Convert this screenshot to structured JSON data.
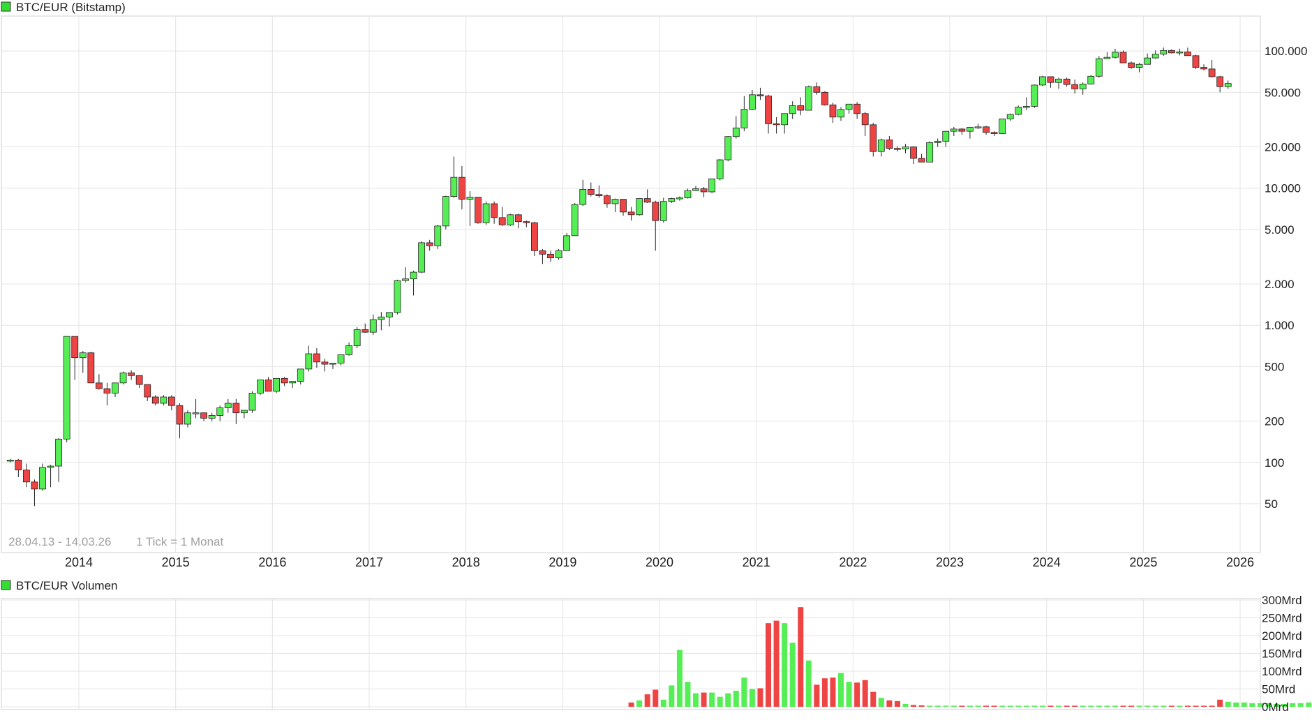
{
  "chart_data": [
    {
      "type": "candlestick",
      "title": "BTC/EUR (Bitstamp)",
      "legend_color": "#33dd33",
      "up_color": "#55ee55",
      "down_color": "#ee4444",
      "scale": "log",
      "ylim": [
        22,
        180000
      ],
      "grid": true,
      "y_ticks": [
        50,
        100,
        200,
        500,
        1000,
        2000,
        5000,
        10000,
        20000,
        50000,
        100000
      ],
      "y_tick_labels": [
        "50",
        "100",
        "200",
        "500",
        "1.000",
        "2.000",
        "5.000",
        "10.000",
        "20.000",
        "50.000",
        "100.000"
      ],
      "x_tick_labels": [
        "2014",
        "2015",
        "2016",
        "2017",
        "2018",
        "2019",
        "2020",
        "2021",
        "2022",
        "2023",
        "2024",
        "2025",
        "2026"
      ],
      "date_range": "28.04.13 - 14.03.26",
      "tick_note": "1 Tick = 1 Monat",
      "candles_ohlc": [
        [
          103,
          106,
          100,
          104
        ],
        [
          104,
          106,
          78,
          88
        ],
        [
          88,
          98,
          66,
          72
        ],
        [
          72,
          75,
          48,
          64
        ],
        [
          64,
          98,
          62,
          92
        ],
        [
          92,
          96,
          66,
          94
        ],
        [
          94,
          150,
          72,
          148
        ],
        [
          148,
          830,
          140,
          830
        ],
        [
          830,
          830,
          400,
          580
        ],
        [
          580,
          650,
          450,
          630
        ],
        [
          630,
          640,
          380,
          380
        ],
        [
          380,
          440,
          340,
          345
        ],
        [
          345,
          380,
          260,
          320
        ],
        [
          320,
          380,
          300,
          380
        ],
        [
          380,
          460,
          370,
          450
        ],
        [
          450,
          470,
          400,
          430
        ],
        [
          430,
          430,
          350,
          370
        ],
        [
          370,
          370,
          280,
          300
        ],
        [
          300,
          310,
          260,
          270
        ],
        [
          270,
          310,
          260,
          300
        ],
        [
          300,
          310,
          240,
          260
        ],
        [
          260,
          270,
          150,
          190
        ],
        [
          190,
          240,
          180,
          230
        ],
        [
          230,
          290,
          210,
          230
        ],
        [
          230,
          230,
          200,
          210
        ],
        [
          210,
          230,
          200,
          220
        ],
        [
          220,
          260,
          200,
          250
        ],
        [
          250,
          290,
          230,
          270
        ],
        [
          270,
          290,
          190,
          230
        ],
        [
          230,
          240,
          210,
          240
        ],
        [
          240,
          330,
          230,
          320
        ],
        [
          320,
          400,
          310,
          400
        ],
        [
          400,
          420,
          330,
          330
        ],
        [
          330,
          410,
          320,
          410
        ],
        [
          410,
          420,
          360,
          380
        ],
        [
          380,
          390,
          350,
          390
        ],
        [
          390,
          480,
          370,
          480
        ],
        [
          480,
          710,
          460,
          620
        ],
        [
          620,
          680,
          490,
          540
        ],
        [
          540,
          570,
          460,
          520
        ],
        [
          520,
          530,
          480,
          530
        ],
        [
          530,
          610,
          510,
          610
        ],
        [
          610,
          750,
          600,
          710
        ],
        [
          710,
          970,
          680,
          930
        ],
        [
          930,
          1030,
          880,
          890
        ],
        [
          890,
          1200,
          850,
          1100
        ],
        [
          1100,
          1250,
          920,
          1150
        ],
        [
          1150,
          1250,
          980,
          1240
        ],
        [
          1240,
          2150,
          1200,
          2120
        ],
        [
          2120,
          2650,
          2050,
          2180
        ],
        [
          2180,
          2500,
          1650,
          2440
        ],
        [
          2440,
          4100,
          2400,
          4000
        ],
        [
          4000,
          4200,
          3500,
          3800
        ],
        [
          3800,
          5400,
          3600,
          5300
        ],
        [
          5300,
          8800,
          5000,
          8700
        ],
        [
          8700,
          17000,
          8500,
          12000
        ],
        [
          12000,
          14500,
          7000,
          8300
        ],
        [
          8300,
          9500,
          5300,
          8600
        ],
        [
          8600,
          8600,
          5500,
          5600
        ],
        [
          5600,
          8000,
          5400,
          7700
        ],
        [
          7700,
          8000,
          5500,
          6100
        ],
        [
          6100,
          7300,
          5300,
          5400
        ],
        [
          5400,
          6500,
          5300,
          6400
        ],
        [
          6400,
          6500,
          5100,
          5700
        ],
        [
          5700,
          5800,
          5200,
          5600
        ],
        [
          5600,
          5700,
          3200,
          3500
        ],
        [
          3500,
          3600,
          2800,
          3300
        ],
        [
          3300,
          3500,
          2900,
          3100
        ],
        [
          3100,
          3600,
          3000,
          3500
        ],
        [
          3500,
          4700,
          3500,
          4500
        ],
        [
          4500,
          7800,
          4500,
          7600
        ],
        [
          7600,
          11500,
          7400,
          9800
        ],
        [
          9800,
          11000,
          8700,
          9000
        ],
        [
          9000,
          10500,
          8500,
          8800
        ],
        [
          8800,
          9000,
          7200,
          7700
        ],
        [
          7700,
          8400,
          6700,
          8300
        ],
        [
          8300,
          8300,
          6300,
          6700
        ],
        [
          6700,
          7300,
          5800,
          6400
        ],
        [
          6400,
          8400,
          6300,
          8400
        ],
        [
          8400,
          9800,
          7800,
          7900
        ],
        [
          7900,
          8100,
          3500,
          5800
        ],
        [
          5800,
          8500,
          5600,
          8000
        ],
        [
          8000,
          8500,
          7800,
          8400
        ],
        [
          8400,
          8700,
          8100,
          8500
        ],
        [
          8500,
          9900,
          8400,
          9600
        ],
        [
          9600,
          10400,
          9500,
          9900
        ],
        [
          9900,
          10200,
          8600,
          9400
        ],
        [
          9400,
          11600,
          9200,
          11700
        ],
        [
          11700,
          16300,
          11400,
          16100
        ],
        [
          16100,
          24000,
          15700,
          23800
        ],
        [
          23800,
          33500,
          23000,
          27500
        ],
        [
          27500,
          47000,
          26000,
          37600
        ],
        [
          37600,
          52000,
          37000,
          48000
        ],
        [
          48000,
          54000,
          44000,
          47000
        ],
        [
          47000,
          48000,
          25000,
          29500
        ],
        [
          29500,
          33000,
          25000,
          29000
        ],
        [
          29000,
          35000,
          25000,
          35000
        ],
        [
          35000,
          43000,
          32000,
          40000
        ],
        [
          40000,
          46000,
          34000,
          37000
        ],
        [
          37000,
          56000,
          37000,
          55000
        ],
        [
          55000,
          59000,
          48000,
          50000
        ],
        [
          50000,
          51000,
          40000,
          40500
        ],
        [
          40500,
          42000,
          30000,
          33000
        ],
        [
          33000,
          39000,
          31000,
          37500
        ],
        [
          37500,
          41000,
          35000,
          41000
        ],
        [
          41000,
          42500,
          32000,
          35000
        ],
        [
          35000,
          36000,
          24000,
          29000
        ],
        [
          29000,
          30000,
          17000,
          18500
        ],
        [
          18500,
          23000,
          17000,
          22500
        ],
        [
          22500,
          24000,
          19000,
          19500
        ],
        [
          19500,
          20200,
          18500,
          19300
        ],
        [
          19300,
          21000,
          18000,
          20000
        ],
        [
          20000,
          20200,
          15000,
          16500
        ],
        [
          16500,
          17800,
          15500,
          15500
        ],
        [
          15500,
          22000,
          15500,
          21500
        ],
        [
          21500,
          23000,
          20000,
          22000
        ],
        [
          22000,
          26000,
          20000,
          26000
        ],
        [
          26000,
          28000,
          24000,
          27000
        ],
        [
          27000,
          27500,
          24500,
          26000
        ],
        [
          26000,
          28000,
          23000,
          27800
        ],
        [
          27800,
          29500,
          27000,
          28000
        ],
        [
          28000,
          28500,
          24500,
          25500
        ],
        [
          25500,
          26000,
          24000,
          25000
        ],
        [
          25000,
          32000,
          24800,
          32000
        ],
        [
          32000,
          35000,
          31000,
          34500
        ],
        [
          34500,
          40000,
          34000,
          39000
        ],
        [
          39000,
          46000,
          37000,
          39500
        ],
        [
          39500,
          57000,
          38500,
          56500
        ],
        [
          56500,
          66000,
          55500,
          65000
        ],
        [
          65000,
          65000,
          54000,
          59000
        ],
        [
          59000,
          64000,
          53000,
          62500
        ],
        [
          62500,
          64000,
          55000,
          57000
        ],
        [
          57000,
          62000,
          49000,
          53000
        ],
        [
          53000,
          59000,
          48000,
          57500
        ],
        [
          57500,
          67000,
          57000,
          65500
        ],
        [
          65500,
          92000,
          64000,
          88000
        ],
        [
          88000,
          98000,
          88000,
          90000
        ],
        [
          90000,
          104000,
          88000,
          98000
        ],
        [
          98000,
          101000,
          84000,
          82000
        ],
        [
          82000,
          84000,
          74000,
          76000
        ],
        [
          76000,
          82000,
          70000,
          80000
        ],
        [
          80000,
          96000,
          80000,
          89000
        ],
        [
          89000,
          101000,
          88000,
          95000
        ],
        [
          95000,
          106000,
          92000,
          101000
        ],
        [
          101000,
          103000,
          96000,
          97000
        ],
        [
          97000,
          104000,
          93000,
          98500
        ],
        [
          98500,
          106000,
          95000,
          92500
        ],
        [
          92500,
          94000,
          74000,
          76000
        ],
        [
          76000,
          80000,
          72000,
          74000
        ],
        [
          74000,
          86000,
          64000,
          65000
        ],
        [
          65000,
          66000,
          50000,
          55000
        ],
        [
          55000,
          61000,
          53000,
          58000
        ]
      ],
      "month_start": "2013-04",
      "axis_font": "Liberation Sans"
    },
    {
      "type": "bar",
      "title": "BTC/EUR Volumen",
      "legend_color": "#33dd33",
      "ylim": [
        0,
        300
      ],
      "y_ticks": [
        0,
        50,
        100,
        150,
        200,
        250,
        300
      ],
      "y_tick_labels": [
        "0Mrd",
        "50Mrd",
        "100Mrd",
        "150Mrd",
        "200Mrd",
        "250Mrd",
        "300Mrd"
      ],
      "volume_start": "2019-09",
      "volume_values": [
        12,
        18,
        35,
        48,
        20,
        60,
        160,
        70,
        38,
        40,
        40,
        28,
        38,
        45,
        82,
        50,
        52,
        235,
        242,
        235,
        180,
        280,
        130,
        62,
        80,
        82,
        95,
        70,
        68,
        75,
        42,
        25,
        18,
        16,
        8,
        5,
        4,
        3,
        3,
        3,
        3,
        3,
        3,
        3,
        3,
        3,
        3,
        3,
        3,
        3,
        3,
        3,
        3,
        3,
        3,
        3,
        3,
        3,
        3,
        3,
        3,
        3,
        3,
        3,
        3,
        3,
        3,
        3,
        3,
        3,
        3,
        3,
        3,
        20,
        14,
        12,
        12,
        10,
        10,
        10,
        8,
        8,
        10,
        10,
        12,
        10,
        12,
        10,
        8,
        6,
        6,
        5
      ]
    }
  ]
}
